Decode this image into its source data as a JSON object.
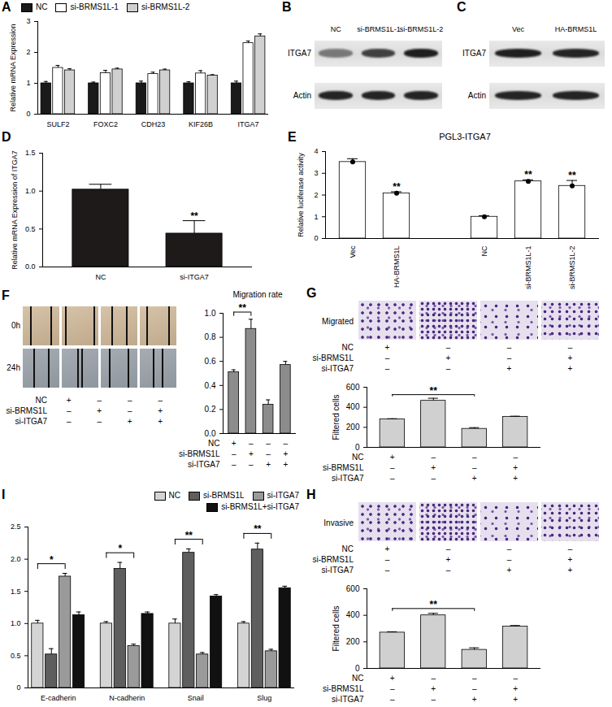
{
  "chart_data": [
    {
      "panel": "A",
      "type": "bar",
      "categories": [
        "SULF2",
        "FOXC2",
        "CDH23",
        "KIF26B",
        "ITGA7"
      ],
      "y_label": "Relative mRNA Expression",
      "ylim": [
        0,
        3
      ],
      "yticks": [
        0,
        1,
        2,
        3
      ],
      "legend": "top-left",
      "series": [
        {
          "name": "NC",
          "color": "#1a1a1a",
          "values": [
            1,
            1,
            1,
            1,
            1
          ],
          "errors": [
            0.06,
            0.04,
            0.07,
            0.05,
            0.07
          ]
        },
        {
          "name": "si-BRMS1L-1",
          "color": "#ffffff",
          "values": [
            1.5,
            1.33,
            1.3,
            1.32,
            2.3
          ],
          "errors": [
            0.08,
            0.09,
            0.06,
            0.09,
            0.07
          ]
        },
        {
          "name": "si-BRMS1L-2",
          "color": "#d0d0d0",
          "values": [
            1.42,
            1.45,
            1.42,
            1.25,
            2.52
          ],
          "errors": [
            0.05,
            0.04,
            0.04,
            0.03,
            0.08
          ]
        }
      ]
    },
    {
      "panel": "D",
      "type": "bar",
      "categories": [
        "NC",
        "si-ITGA7"
      ],
      "values": [
        1.02,
        0.44
      ],
      "errors": [
        0.07,
        0.17
      ],
      "color": "#1e1a1a",
      "y_label": "Relative mRNA Expression of ITGA7",
      "ylim": [
        0,
        1.5
      ],
      "yticks": [
        {
          "value": 0,
          "label": "0.0"
        },
        0.5,
        {
          "value": 1,
          "label": "1.0"
        },
        1.5
      ],
      "annotations": [
        {
          "text": "**",
          "at": 1
        }
      ]
    },
    {
      "panel": "E",
      "type": "bar",
      "title": "PGL3-ITGA7",
      "categories": [
        "Vec",
        "HA-BRMS1L",
        null,
        "NC",
        "si-BRMS1L-1",
        "si-BRMS1L-2"
      ],
      "values": [
        3.52,
        2.08,
        null,
        1.0,
        2.63,
        2.42
      ],
      "errors": [
        0.15,
        0.07,
        null,
        0.05,
        0.07,
        0.25
      ],
      "color": "#ffffff",
      "marker": "circle",
      "y_label": "Relative luciferase activity",
      "ylim": [
        0,
        4
      ],
      "yticks": [
        0,
        1,
        2,
        3,
        4
      ],
      "annotations": [
        {
          "text": "**",
          "at": 1
        },
        {
          "text": "**",
          "at": 4
        },
        {
          "text": "**",
          "at": 5
        }
      ]
    },
    {
      "panel": "F",
      "type": "bar",
      "title": "Migration rate",
      "values": [
        0.51,
        0.87,
        0.24,
        0.57
      ],
      "errors": [
        0.02,
        0.08,
        0.04,
        0.03
      ],
      "color": "#8c8c8c",
      "ylim": [
        0,
        1
      ],
      "yticks": [
        {
          "value": 0,
          "label": "0.0"
        },
        0.2,
        0.4,
        0.6,
        0.8,
        {
          "value": 1,
          "label": "1.0"
        }
      ],
      "conditions": {
        "rows": [
          "NC",
          "si-BRMS1L",
          "si-ITGA7"
        ],
        "marks": [
          [
            "+",
            "–",
            "–",
            "–"
          ],
          [
            "–",
            "+",
            "–",
            "+"
          ],
          [
            "–",
            "–",
            "+",
            "+"
          ]
        ]
      },
      "annotations": [
        {
          "text": "**",
          "from": 0,
          "to": 1
        }
      ]
    },
    {
      "panel": "G",
      "type": "bar",
      "values": [
        280,
        465,
        185,
        305
      ],
      "errors": [
        6,
        25,
        12,
        6
      ],
      "color": "#d0d0d0",
      "y_label": "Filtered cells",
      "ylim": [
        0,
        600
      ],
      "yticks": [
        0,
        200,
        400,
        600
      ],
      "conditions": {
        "rows": [
          "NC",
          "si-BRMS1L",
          "si-ITGA7"
        ],
        "marks": [
          [
            "+",
            "–",
            "–",
            "–"
          ],
          [
            "–",
            "+",
            "–",
            "+"
          ],
          [
            "–",
            "–",
            "+",
            "+"
          ]
        ]
      },
      "annotations": [
        {
          "text": "**",
          "from": 0,
          "to": 2
        }
      ]
    },
    {
      "panel": "H",
      "type": "bar",
      "values": [
        270,
        400,
        140,
        315
      ],
      "errors": [
        6,
        15,
        15,
        8
      ],
      "color": "#d0d0d0",
      "y_label": "Filtered cells",
      "ylim": [
        0,
        600
      ],
      "yticks": [
        0,
        200,
        400,
        600
      ],
      "conditions": {
        "rows": [
          "NC",
          "si-BRMS1L",
          "si-ITGA7"
        ],
        "marks": [
          [
            "+",
            "–",
            "–",
            "–"
          ],
          [
            "–",
            "+",
            "–",
            "+"
          ],
          [
            "–",
            "–",
            "+",
            "+"
          ]
        ]
      },
      "annotations": [
        {
          "text": "**",
          "from": 0,
          "to": 2
        }
      ]
    },
    {
      "panel": "I",
      "type": "bar",
      "categories": [
        "E-cadherin",
        "N-cadherin",
        "Snail",
        "Slug"
      ],
      "ylim": [
        0,
        2.5
      ],
      "yticks": [
        0,
        0.5,
        {
          "value": 1,
          "label": "1.0"
        },
        1.5,
        {
          "value": 2,
          "label": "2.0"
        },
        2.5
      ],
      "legend": "top-right",
      "series": [
        {
          "name": "NC",
          "color": "#d4d4d4",
          "values": [
            1.0,
            1.0,
            1.0,
            1.0
          ],
          "errors": [
            0.05,
            0.03,
            0.07,
            0.03
          ]
        },
        {
          "name": "si-BRMS1L",
          "color": "#5e5e5e",
          "values": [
            0.52,
            1.85,
            2.1,
            2.15
          ],
          "errors": [
            0.09,
            0.1,
            0.06,
            0.1
          ]
        },
        {
          "name": "si-ITGA7",
          "color": "#9a9a9a",
          "values": [
            1.73,
            0.65,
            0.52,
            0.57
          ],
          "errors": [
            0.05,
            0.03,
            0.03,
            0.03
          ]
        },
        {
          "name": "si-BRMS1L+si-ITGA7",
          "color": "#111111",
          "values": [
            1.13,
            1.15,
            1.42,
            1.55
          ],
          "errors": [
            0.05,
            0.03,
            0.03,
            0.03
          ]
        }
      ],
      "annotations": [
        {
          "text": "*",
          "category": "E-cadherin",
          "from": "NC",
          "to": "si-ITGA7"
        },
        {
          "text": "*",
          "category": "N-cadherin",
          "from": "NC",
          "to": "si-ITGA7"
        },
        {
          "text": "**",
          "category": "Snail",
          "from": "NC",
          "to": "si-ITGA7"
        },
        {
          "text": "**",
          "category": "Slug",
          "from": "NC",
          "to": "si-ITGA7"
        }
      ]
    }
  ],
  "blots": [
    {
      "panel": "B",
      "lanes": [
        "NC",
        "si-BRMS1L-1",
        "si-BRMS1L-2"
      ],
      "rows": [
        "ITGA7",
        "Actin"
      ]
    },
    {
      "panel": "C",
      "lanes": [
        "Vec",
        "HA-BRMS1L"
      ],
      "rows": [
        "ITGA7",
        "Actin"
      ]
    }
  ],
  "images": [
    {
      "panel": "F",
      "row_labels": [
        "0h",
        "24h"
      ]
    },
    {
      "panel": "G",
      "label": "Migrated"
    },
    {
      "panel": "H",
      "label": "Invasive"
    }
  ]
}
